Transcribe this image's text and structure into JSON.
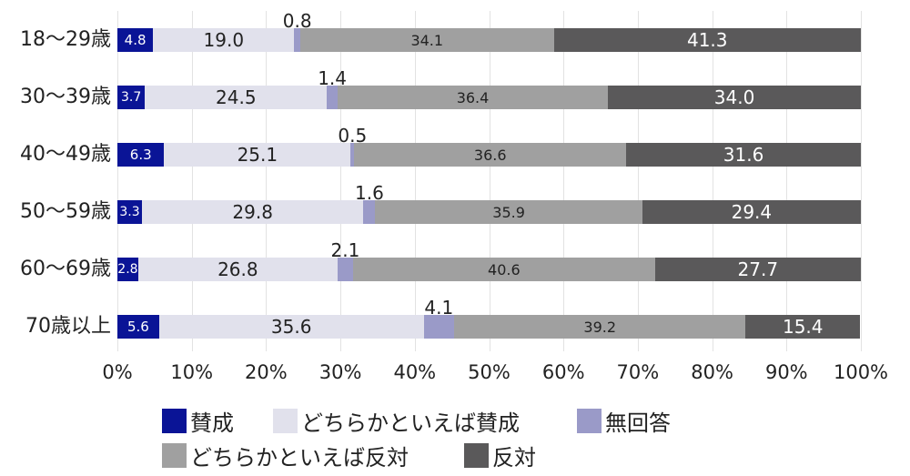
{
  "chart_data": {
    "type": "bar",
    "orientation": "horizontal",
    "stacked": true,
    "percent_stacked": true,
    "title": "",
    "xlabel": "",
    "ylabel": "",
    "xlim": [
      0,
      100
    ],
    "grid": true,
    "legend_position": "bottom",
    "categories": [
      "18〜29歳",
      "30〜39歳",
      "40〜49歳",
      "50〜59歳",
      "60〜69歳",
      "70歳以上"
    ],
    "x_ticks": [
      "0%",
      "10%",
      "20%",
      "30%",
      "40%",
      "50%",
      "60%",
      "70%",
      "80%",
      "90%",
      "100%"
    ],
    "series": [
      {
        "name": "賛成",
        "color": "#0a1496",
        "label_color": "#ffffff",
        "values": [
          4.8,
          3.7,
          6.3,
          3.3,
          2.8,
          5.6
        ]
      },
      {
        "name": "どちらかといえば賛成",
        "color": "#e1e1ec",
        "label_color": "#222222",
        "values": [
          19.0,
          24.5,
          25.1,
          29.8,
          26.8,
          35.6
        ]
      },
      {
        "name": "無回答",
        "color": "#9a9ac8",
        "label_color": "#222222",
        "values": [
          0.8,
          1.4,
          0.5,
          1.6,
          2.1,
          4.1
        ]
      },
      {
        "name": "どちらかといえば反対",
        "color": "#a0a0a0",
        "label_color": "#222222",
        "values": [
          34.1,
          36.4,
          36.6,
          35.9,
          40.6,
          39.2
        ]
      },
      {
        "name": "反対",
        "color": "#5a595a",
        "label_color": "#ffffff",
        "values": [
          41.3,
          34.0,
          31.6,
          29.4,
          27.7,
          15.4
        ]
      }
    ],
    "value_labels": {
      "賛成": [
        "4.8",
        "3.7",
        "6.3",
        "3.3",
        "2.8",
        "5.6"
      ],
      "どちらかといえば賛成": [
        "19.0",
        "24.5",
        "25.1",
        "29.8",
        "26.8",
        "35.6"
      ],
      "無回答": [
        "0.8",
        "1.4",
        "0.5",
        "1.6",
        "2.1",
        "4.1"
      ],
      "どちらかといえば反対": [
        "34.1",
        "36.4",
        "36.6",
        "35.9",
        "40.6",
        "39.2"
      ],
      "反対": [
        "41.3",
        "34.0",
        "31.6",
        "29.4",
        "27.7",
        "15.4"
      ]
    }
  },
  "legend": {
    "items": [
      {
        "label": "賛成",
        "color": "#0a1496"
      },
      {
        "label": "どちらかといえば賛成",
        "color": "#e1e1ec"
      },
      {
        "label": "無回答",
        "color": "#9a9ac8"
      },
      {
        "label": "どちらかといえば反対",
        "color": "#a0a0a0"
      },
      {
        "label": "反対",
        "color": "#5a595a"
      }
    ]
  }
}
